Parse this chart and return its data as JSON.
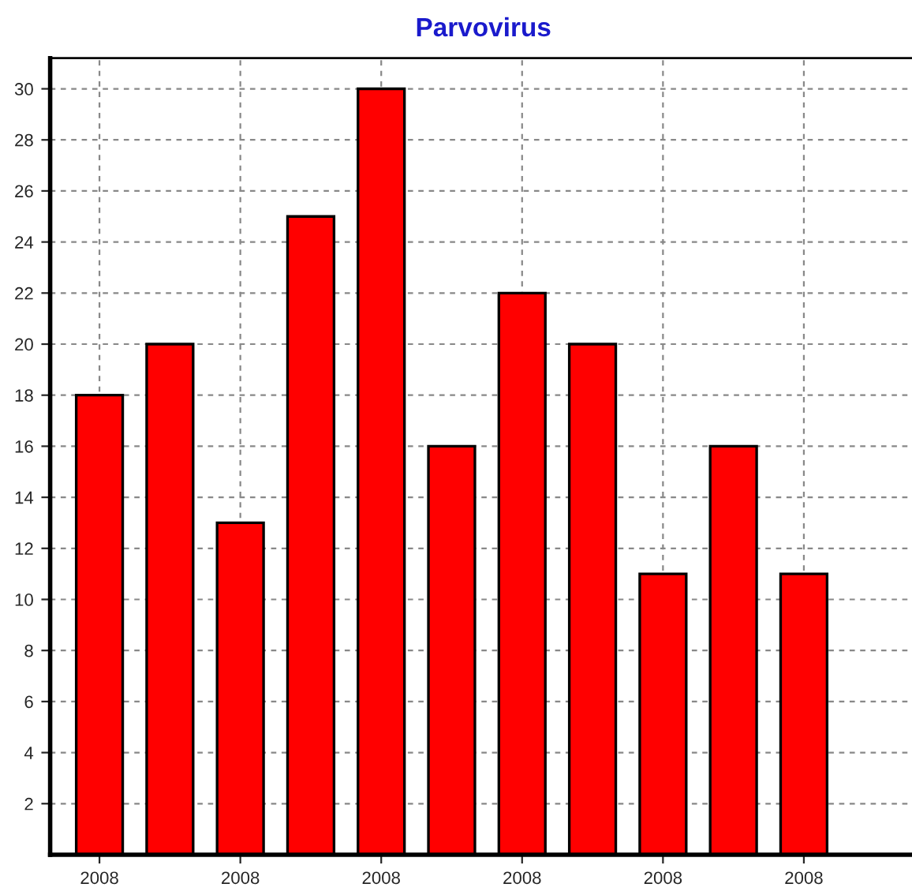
{
  "chart_data": {
    "type": "bar",
    "title": "Parvovirus",
    "categories": [
      "2008",
      null,
      "2008",
      null,
      "2008",
      null,
      "2008",
      null,
      "2008",
      null,
      "2008"
    ],
    "values": [
      18,
      20,
      13,
      25,
      30,
      16,
      22,
      20,
      11,
      16,
      11
    ],
    "color": "#ff0000",
    "ylim": [
      0,
      31.2
    ],
    "yticks": [
      2,
      4,
      6,
      8,
      10,
      12,
      14,
      16,
      18,
      20,
      22,
      24,
      26,
      28,
      30
    ],
    "grid": true,
    "legend": false
  }
}
